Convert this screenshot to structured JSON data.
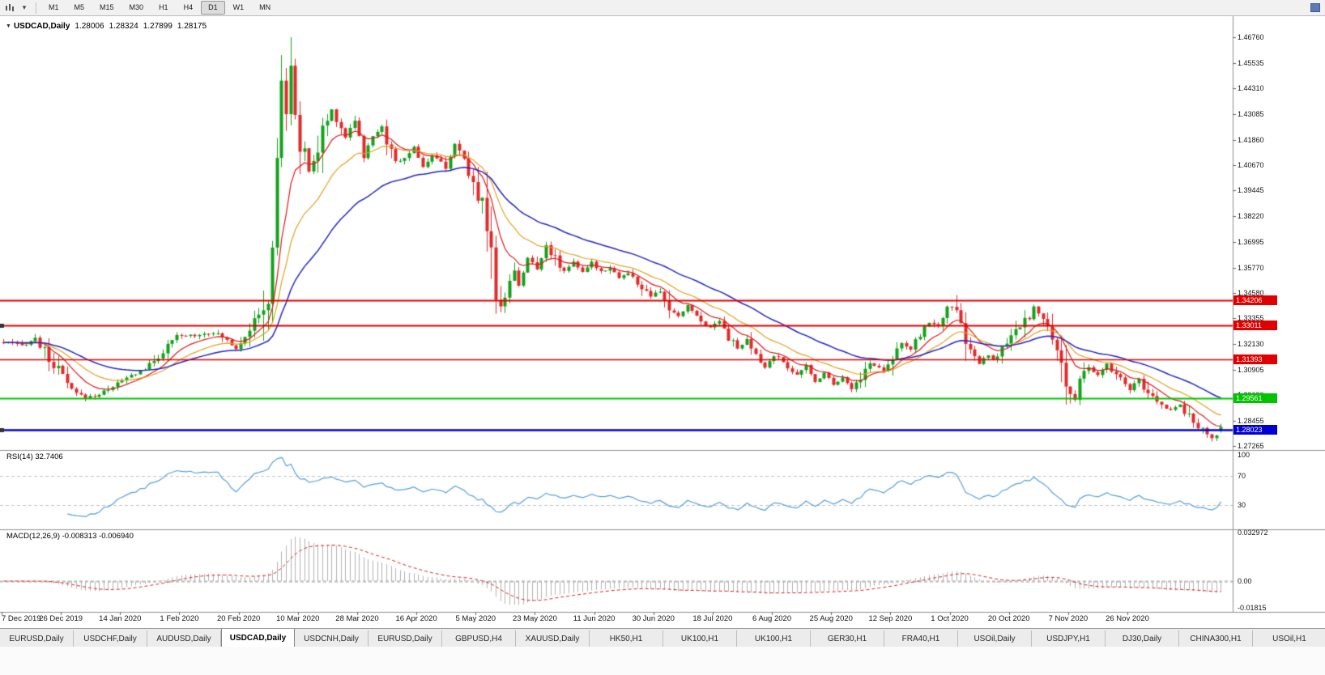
{
  "toolbar": {
    "chart_type_icon": "candlestick-chart-icon",
    "dropdown_caret": "chevron-down-icon",
    "corner_icon": "docking-icon",
    "timeframes": [
      {
        "label": "M1",
        "active": false
      },
      {
        "label": "M5",
        "active": false
      },
      {
        "label": "M15",
        "active": false
      },
      {
        "label": "M30",
        "active": false
      },
      {
        "label": "H1",
        "active": false
      },
      {
        "label": "H4",
        "active": false
      },
      {
        "label": "D1",
        "active": true
      },
      {
        "label": "W1",
        "active": false
      },
      {
        "label": "MN",
        "active": false
      }
    ]
  },
  "chart": {
    "title_symbol": "USDCAD,Daily",
    "ohlc": {
      "open": "1.28006",
      "high": "1.28324",
      "low": "1.27899",
      "close": "1.28175"
    }
  },
  "price_axis": {
    "ticks": [
      "1.46760",
      "1.45535",
      "1.44310",
      "1.43085",
      "1.41860",
      "1.40670",
      "1.39445",
      "1.38220",
      "1.36995",
      "1.35770",
      "1.34580",
      "1.33355",
      "1.32130",
      "1.30905",
      "1.29680",
      "1.28455",
      "1.27265"
    ]
  },
  "hlines": [
    {
      "price": 1.34206,
      "label": "1.34206",
      "color": "#e00000",
      "width": 2,
      "marker": false
    },
    {
      "price": 1.33011,
      "label": "1.33011",
      "color": "#e00000",
      "width": 2,
      "marker": true
    },
    {
      "price": 1.31393,
      "label": "1.31393",
      "color": "#e00000",
      "width": 1.5,
      "marker": false
    },
    {
      "price": 1.29561,
      "label": "1.29561",
      "color": "#00c400",
      "width": 2,
      "marker": false
    },
    {
      "price": 1.28023,
      "label": "1.28023",
      "color": "#0000d0",
      "width": 2.5,
      "marker": true
    }
  ],
  "panels": {
    "rsi": {
      "name": "RSI(14)",
      "value": "32.7406",
      "level_labels": [
        "100",
        "70",
        "30"
      ],
      "levels": [
        100,
        70,
        30
      ],
      "dashed_levels": [
        70,
        30
      ],
      "line_color": "#569fdc"
    },
    "macd": {
      "name": "MACD(12,26,9)",
      "value": "-0.008313 -0.006940",
      "axis_labels": [
        "0.032972",
        "0.00",
        "-0.01815"
      ],
      "axis_values": [
        0.032972,
        0,
        -0.01815
      ],
      "hist_color": "#b2b2b2",
      "signal_color": "#d82020"
    }
  },
  "tabs": [
    {
      "label": "EURUSD,Daily",
      "active": false
    },
    {
      "label": "USDCHF,Daily",
      "active": false
    },
    {
      "label": "AUDUSD,Daily",
      "active": false
    },
    {
      "label": "USDCAD,Daily",
      "active": true
    },
    {
      "label": "USDCNH,Daily",
      "active": false
    },
    {
      "label": "EURUSD,Daily",
      "active": false
    },
    {
      "label": "GBPUSD,H4",
      "active": false
    },
    {
      "label": "XAUUSD,Daily",
      "active": false
    },
    {
      "label": "HK50,H1",
      "active": false
    },
    {
      "label": "UK100,H1",
      "active": false
    },
    {
      "label": "UK100,H1",
      "active": false
    },
    {
      "label": "GER30,H1",
      "active": false
    },
    {
      "label": "FRA40,H1",
      "active": false
    },
    {
      "label": "USOil,Daily",
      "active": false
    },
    {
      "label": "USDJPY,H1",
      "active": false
    },
    {
      "label": "DJ30,Daily",
      "active": false
    },
    {
      "label": "CHINA300,H1",
      "active": false
    },
    {
      "label": "USOil,H1",
      "active": false
    }
  ],
  "chart_data": {
    "type": "candlestick",
    "symbol": "USDCAD",
    "timeframe": "Daily",
    "current_bar": {
      "open": 1.28006,
      "high": 1.28324,
      "low": 1.27899,
      "close": 1.28175
    },
    "ylim": [
      1.2719,
      1.4753
    ],
    "extreme_high": 1.4676,
    "extreme_low": 1.2735,
    "candle_count": 268,
    "date_ticks": [
      "7 Dec 2019",
      "26 Dec 2019",
      "14 Jan 2020",
      "1 Feb 2020",
      "20 Feb 2020",
      "10 Mar 2020",
      "28 Mar 2020",
      "16 Apr 2020",
      "5 May 2020",
      "23 May 2020",
      "11 Jun 2020",
      "30 Jun 2020",
      "18 Jul 2020",
      "6 Aug 2020",
      "25 Aug 2020",
      "12 Sep 2020",
      "1 Oct 2020",
      "20 Oct 2020",
      "7 Nov 2020",
      "26 Nov 2020"
    ],
    "close_anchors": [
      [
        0,
        1.322
      ],
      [
        4,
        1.3205
      ],
      [
        7,
        1.324
      ],
      [
        10,
        1.314
      ],
      [
        13,
        1.306
      ],
      [
        15,
        1.2985
      ],
      [
        18,
        1.2958
      ],
      [
        21,
        1.2972
      ],
      [
        23,
        1.3
      ],
      [
        28,
        1.3062
      ],
      [
        32,
        1.311
      ],
      [
        36,
        1.32
      ],
      [
        38,
        1.3248
      ],
      [
        42,
        1.3256
      ],
      [
        46,
        1.327
      ],
      [
        49,
        1.3232
      ],
      [
        51,
        1.3192
      ],
      [
        53,
        1.3262
      ],
      [
        56,
        1.3342
      ],
      [
        58,
        1.343
      ],
      [
        59,
        1.362
      ],
      [
        60,
        1.41
      ],
      [
        61,
        1.45
      ],
      [
        62,
        1.431
      ],
      [
        63,
        1.448
      ],
      [
        64,
        1.434
      ],
      [
        65,
        1.416
      ],
      [
        67,
        1.404
      ],
      [
        69,
        1.413
      ],
      [
        70,
        1.423
      ],
      [
        72,
        1.433
      ],
      [
        75,
        1.42
      ],
      [
        77,
        1.429
      ],
      [
        79,
        1.411
      ],
      [
        81,
        1.42
      ],
      [
        83,
        1.426
      ],
      [
        85,
        1.411
      ],
      [
        87,
        1.408
      ],
      [
        90,
        1.415
      ],
      [
        92,
        1.406
      ],
      [
        94,
        1.411
      ],
      [
        97,
        1.406
      ],
      [
        99,
        1.416
      ],
      [
        101,
        1.408
      ],
      [
        103,
        1.397
      ],
      [
        105,
        1.39
      ],
      [
        107,
        1.37
      ],
      [
        108,
        1.338
      ],
      [
        110,
        1.346
      ],
      [
        112,
        1.356
      ],
      [
        113,
        1.35
      ],
      [
        115,
        1.362
      ],
      [
        117,
        1.357
      ],
      [
        119,
        1.369
      ],
      [
        120,
        1.364
      ],
      [
        123,
        1.356
      ],
      [
        125,
        1.361
      ],
      [
        127,
        1.355
      ],
      [
        129,
        1.36
      ],
      [
        131,
        1.356
      ],
      [
        133,
        1.358
      ],
      [
        135,
        1.353
      ],
      [
        137,
        1.355
      ],
      [
        140,
        1.348
      ],
      [
        142,
        1.344
      ],
      [
        144,
        1.346
      ],
      [
        146,
        1.338
      ],
      [
        148,
        1.334
      ],
      [
        150,
        1.34
      ],
      [
        152,
        1.334
      ],
      [
        155,
        1.329
      ],
      [
        157,
        1.333
      ],
      [
        159,
        1.325
      ],
      [
        161,
        1.319
      ],
      [
        163,
        1.323
      ],
      [
        165,
        1.315
      ],
      [
        167,
        1.31
      ],
      [
        169,
        1.316
      ],
      [
        172,
        1.311
      ],
      [
        174,
        1.306
      ],
      [
        176,
        1.311
      ],
      [
        178,
        1.303
      ],
      [
        180,
        1.308
      ],
      [
        182,
        1.302
      ],
      [
        184,
        1.306
      ],
      [
        186,
        1.2995
      ],
      [
        188,
        1.306
      ],
      [
        190,
        1.312
      ],
      [
        193,
        1.309
      ],
      [
        195,
        1.316
      ],
      [
        197,
        1.322
      ],
      [
        199,
        1.318
      ],
      [
        201,
        1.326
      ],
      [
        203,
        1.332
      ],
      [
        205,
        1.329
      ],
      [
        207,
        1.34
      ],
      [
        209,
        1.336
      ],
      [
        210,
        1.329
      ],
      [
        212,
        1.318
      ],
      [
        214,
        1.312
      ],
      [
        216,
        1.316
      ],
      [
        217,
        1.313
      ],
      [
        219,
        1.319
      ],
      [
        221,
        1.324
      ],
      [
        223,
        1.33
      ],
      [
        225,
        1.334
      ],
      [
        226,
        1.339
      ],
      [
        228,
        1.332
      ],
      [
        230,
        1.324
      ],
      [
        232,
        1.315
      ],
      [
        233,
        1.302
      ],
      [
        235,
        1.294
      ],
      [
        236,
        1.303
      ],
      [
        238,
        1.31
      ],
      [
        240,
        1.306
      ],
      [
        242,
        1.312
      ],
      [
        243,
        1.308
      ],
      [
        245,
        1.304
      ],
      [
        247,
        1.3
      ],
      [
        249,
        1.304
      ],
      [
        250,
        1.299
      ],
      [
        252,
        1.296
      ],
      [
        254,
        1.292
      ],
      [
        256,
        1.29
      ],
      [
        258,
        1.293
      ],
      [
        259,
        1.288
      ],
      [
        261,
        1.284
      ],
      [
        263,
        1.28
      ],
      [
        265,
        1.276
      ],
      [
        266,
        1.278
      ],
      [
        267,
        1.28175
      ]
    ],
    "candle_colors": {
      "bull": "#14a11c",
      "bear": "#e22a2a"
    },
    "overlays": [
      {
        "type": "ema",
        "period": 9,
        "color": "#e01818",
        "name": "fast-ma"
      },
      {
        "type": "ema",
        "period": 18,
        "color": "#e0a020",
        "name": "medium-ma"
      },
      {
        "type": "ema",
        "period": 36,
        "color": "#2424c4",
        "name": "slow-ma"
      }
    ],
    "indicators": [
      {
        "type": "rsi",
        "period": 14,
        "current": 32.7406
      },
      {
        "type": "macd",
        "fast": 12,
        "slow": 26,
        "signal": 9,
        "current_macd": -0.008313,
        "current_signal": -0.00694
      }
    ]
  }
}
